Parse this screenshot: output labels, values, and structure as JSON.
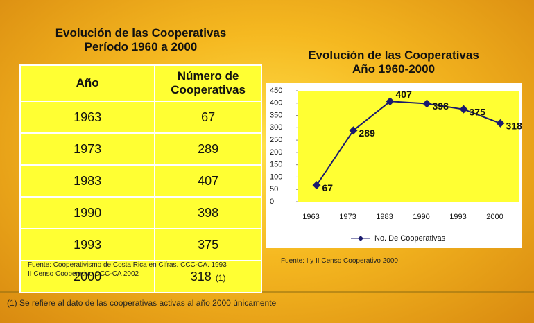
{
  "table": {
    "title": [
      "Evolución de las Cooperativas",
      "Período 1960 a 2000"
    ],
    "header": [
      "Año",
      "Número de Cooperativas"
    ],
    "rows": [
      [
        "1963",
        "67"
      ],
      [
        "1973",
        "289"
      ],
      [
        "1983",
        "407"
      ],
      [
        "1990",
        "398"
      ],
      [
        "1993",
        "375"
      ],
      [
        "2000",
        "318"
      ]
    ],
    "value_note": "(1)",
    "source": [
      "Fuente: Cooperativismo de Costa Rica en Cifras. CCC-CA. 1993",
      "II Censo Cooperativo CCC-CA 2002"
    ]
  },
  "chart_data": {
    "type": "line",
    "title": [
      "Evolución de las Cooperativas",
      "Año 1960-2000"
    ],
    "categories": [
      "1963",
      "1973",
      "1983",
      "1990",
      "1993",
      "2000"
    ],
    "series": [
      {
        "name": "No. De Cooperativas",
        "color": "#1a1a6e",
        "values": [
          67,
          289,
          407,
          398,
          375,
          318
        ]
      }
    ],
    "ylim": [
      0,
      450
    ],
    "yticks": [
      0,
      50,
      100,
      150,
      200,
      250,
      300,
      350,
      400,
      450
    ],
    "plot_color": "#ffff33",
    "legend": "bottom",
    "source": "Fuente: I y II Censo Cooperativo 2000"
  },
  "footnote": "(1) Se refiere al dato de las cooperativas activas al año 2000 únicamente"
}
